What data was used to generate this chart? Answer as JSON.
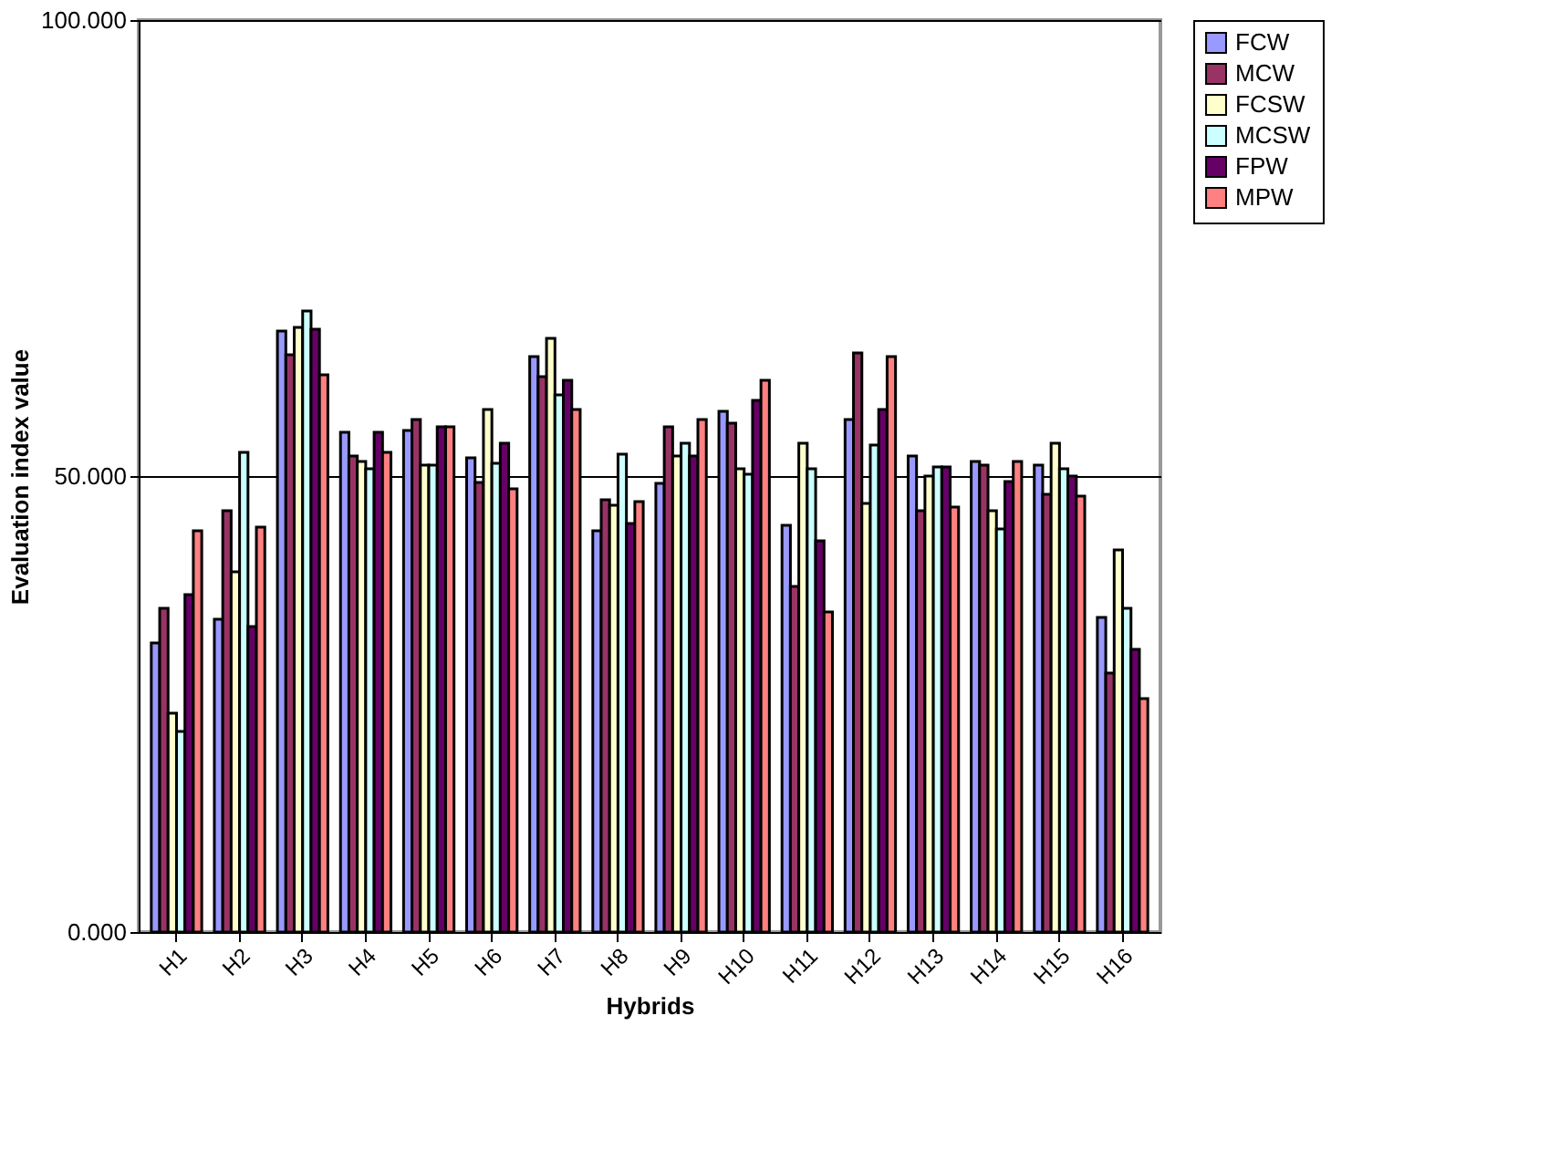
{
  "chart_data": {
    "type": "bar",
    "xlabel": "Hybrids",
    "ylabel": "Evaluation index value",
    "categories": [
      "H1",
      "H2",
      "H3",
      "H4",
      "H5",
      "H6",
      "H7",
      "H8",
      "H9",
      "H10",
      "H11",
      "H12",
      "H13",
      "H14",
      "H15",
      "H16"
    ],
    "series": [
      {
        "name": "FCW",
        "color": "#9999ff",
        "values": [
          31.7,
          34.3,
          65.9,
          54.8,
          55.0,
          52.0,
          63.1,
          44.0,
          49.2,
          57.1,
          44.6,
          56.2,
          52.2,
          51.6,
          51.2,
          34.5
        ]
      },
      {
        "name": "MCW",
        "color": "#993366",
        "values": [
          35.5,
          46.2,
          63.3,
          52.2,
          56.2,
          49.3,
          60.9,
          47.4,
          55.4,
          55.8,
          37.9,
          63.5,
          46.2,
          51.2,
          48.0,
          28.4
        ]
      },
      {
        "name": "FCSW",
        "color": "#ffffcc",
        "values": [
          24.0,
          39.5,
          66.3,
          51.6,
          51.2,
          57.3,
          65.1,
          46.8,
          52.2,
          50.8,
          53.6,
          47.0,
          50.0,
          46.2,
          53.6,
          41.9
        ]
      },
      {
        "name": "MCSW",
        "color": "#ccffff",
        "values": [
          22.0,
          52.6,
          68.1,
          50.8,
          51.2,
          51.4,
          58.9,
          52.4,
          53.6,
          50.2,
          50.8,
          53.4,
          51.0,
          44.2,
          50.8,
          35.5
        ]
      },
      {
        "name": "FPW",
        "color": "#660066",
        "values": [
          37.0,
          33.5,
          66.1,
          54.8,
          55.4,
          53.6,
          60.5,
          44.8,
          52.2,
          58.3,
          42.9,
          57.3,
          51.0,
          49.4,
          50.0,
          31.0
        ]
      },
      {
        "name": "MPW",
        "color": "#ff8080",
        "values": [
          44.0,
          44.4,
          61.1,
          52.6,
          55.4,
          48.6,
          57.3,
          47.2,
          56.2,
          60.5,
          35.1,
          63.1,
          46.6,
          51.6,
          47.8,
          25.6
        ]
      }
    ],
    "ylim": [
      0,
      100
    ],
    "yticks": [
      {
        "value": 0,
        "label": "0.000"
      },
      {
        "value": 50,
        "label": "50.000"
      },
      {
        "value": 100,
        "label": "100.000"
      }
    ],
    "grid": "y",
    "legend": "right"
  }
}
